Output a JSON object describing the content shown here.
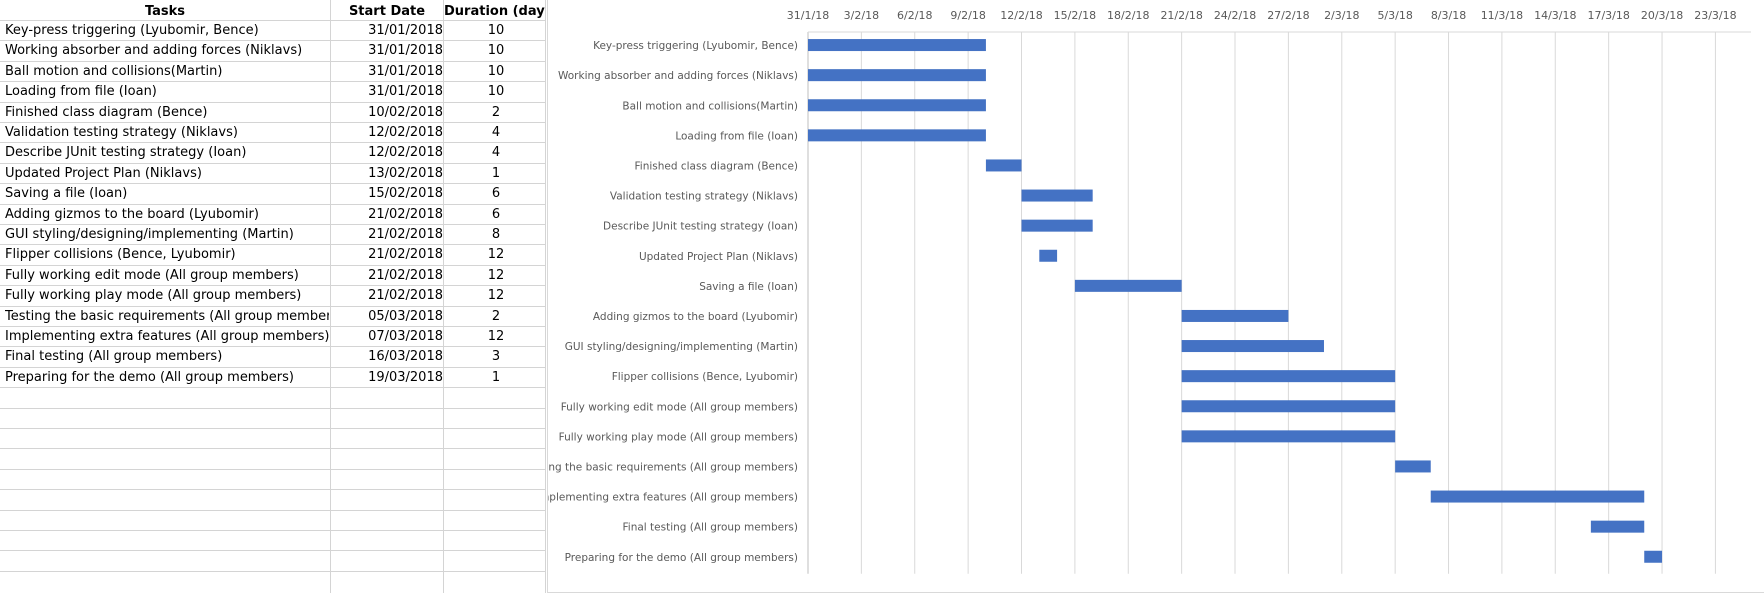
{
  "table": {
    "headers": {
      "task": "Tasks",
      "start": "Start Date",
      "duration": "Duration (days)"
    },
    "rows": [
      {
        "task": "Key-press triggering (Lyubomir, Bence)",
        "start": "31/01/2018",
        "duration": "10"
      },
      {
        "task": "Working absorber and adding forces (Niklavs)",
        "start": "31/01/2018",
        "duration": "10"
      },
      {
        "task": "Ball motion and collisions(Martin)",
        "start": "31/01/2018",
        "duration": "10"
      },
      {
        "task": "Loading from file (Ioan)",
        "start": "31/01/2018",
        "duration": "10"
      },
      {
        "task": "Finished class diagram (Bence)",
        "start": "10/02/2018",
        "duration": "2"
      },
      {
        "task": "Validation testing strategy (Niklavs)",
        "start": "12/02/2018",
        "duration": "4"
      },
      {
        "task": "Describe JUnit testing strategy (Ioan)",
        "start": "12/02/2018",
        "duration": "4"
      },
      {
        "task": "Updated Project Plan (Niklavs)",
        "start": "13/02/2018",
        "duration": "1"
      },
      {
        "task": "Saving a file (Ioan)",
        "start": "15/02/2018",
        "duration": "6"
      },
      {
        "task": "Adding gizmos to the board (Lyubomir)",
        "start": "21/02/2018",
        "duration": "6"
      },
      {
        "task": "GUI styling/designing/implementing (Martin)",
        "start": "21/02/2018",
        "duration": "8"
      },
      {
        "task": "Flipper collisions (Bence, Lyubomir)",
        "start": "21/02/2018",
        "duration": "12"
      },
      {
        "task": "Fully working edit mode (All group members)",
        "start": "21/02/2018",
        "duration": "12"
      },
      {
        "task": "Fully working play mode (All group members)",
        "start": "21/02/2018",
        "duration": "12"
      },
      {
        "task": "Testing the basic requirements (All group members)",
        "start": "05/03/2018",
        "duration": "2"
      },
      {
        "task": "Implementing extra features (All group members)",
        "start": "07/03/2018",
        "duration": "12"
      },
      {
        "task": "Final testing (All group members)",
        "start": "16/03/2018",
        "duration": "3"
      },
      {
        "task": "Preparing for the demo (All group members)",
        "start": "19/03/2018",
        "duration": "1"
      }
    ]
  },
  "chart_data": {
    "type": "bar",
    "orientation": "horizontal",
    "stacked_gantt": true,
    "x_tick_labels": [
      "31/1/18",
      "3/2/18",
      "6/2/18",
      "9/2/18",
      "12/2/18",
      "15/2/18",
      "18/2/18",
      "21/2/18",
      "24/2/18",
      "27/2/18",
      "2/3/18",
      "5/3/18",
      "8/3/18",
      "11/3/18",
      "14/3/18",
      "17/3/18",
      "20/3/18",
      "23/3/18"
    ],
    "x_range_days": [
      0,
      53
    ],
    "x_range_dates": [
      "2018-01-31",
      "2018-03-25"
    ],
    "tick_step_days": 3,
    "categories": [
      "Key-press triggering (Lyubomir, Bence)",
      "Working absorber and adding forces (Niklavs)",
      "Ball motion and collisions(Martin)",
      "Loading from file (Ioan)",
      "Finished class diagram (Bence)",
      "Validation testing strategy (Niklavs)",
      "Describe JUnit testing strategy (Ioan)",
      "Updated Project Plan (Niklavs)",
      "Saving a file (Ioan)",
      "Adding gizmos to the board (Lyubomir)",
      "GUI styling/designing/implementing (Martin)",
      "Flipper collisions (Bence, Lyubomir)",
      "Fully working edit mode (All group members)",
      "Fully working play mode (All group members)",
      "Testing the basic requirements (All group members)",
      "Implementing extra features (All group members)",
      "Final testing (All group members)",
      "Preparing for the demo (All group members)"
    ],
    "start_dates": [
      "2018-01-31",
      "2018-01-31",
      "2018-01-31",
      "2018-01-31",
      "2018-02-10",
      "2018-02-12",
      "2018-02-12",
      "2018-02-13",
      "2018-02-15",
      "2018-02-21",
      "2018-02-21",
      "2018-02-21",
      "2018-02-21",
      "2018-02-21",
      "2018-03-05",
      "2018-03-07",
      "2018-03-16",
      "2018-03-19"
    ],
    "durations": [
      10,
      10,
      10,
      10,
      2,
      4,
      4,
      1,
      6,
      6,
      8,
      12,
      12,
      12,
      2,
      12,
      3,
      1
    ],
    "bar_color": "#4472C4",
    "grid": true,
    "title": "",
    "legend": "none"
  }
}
